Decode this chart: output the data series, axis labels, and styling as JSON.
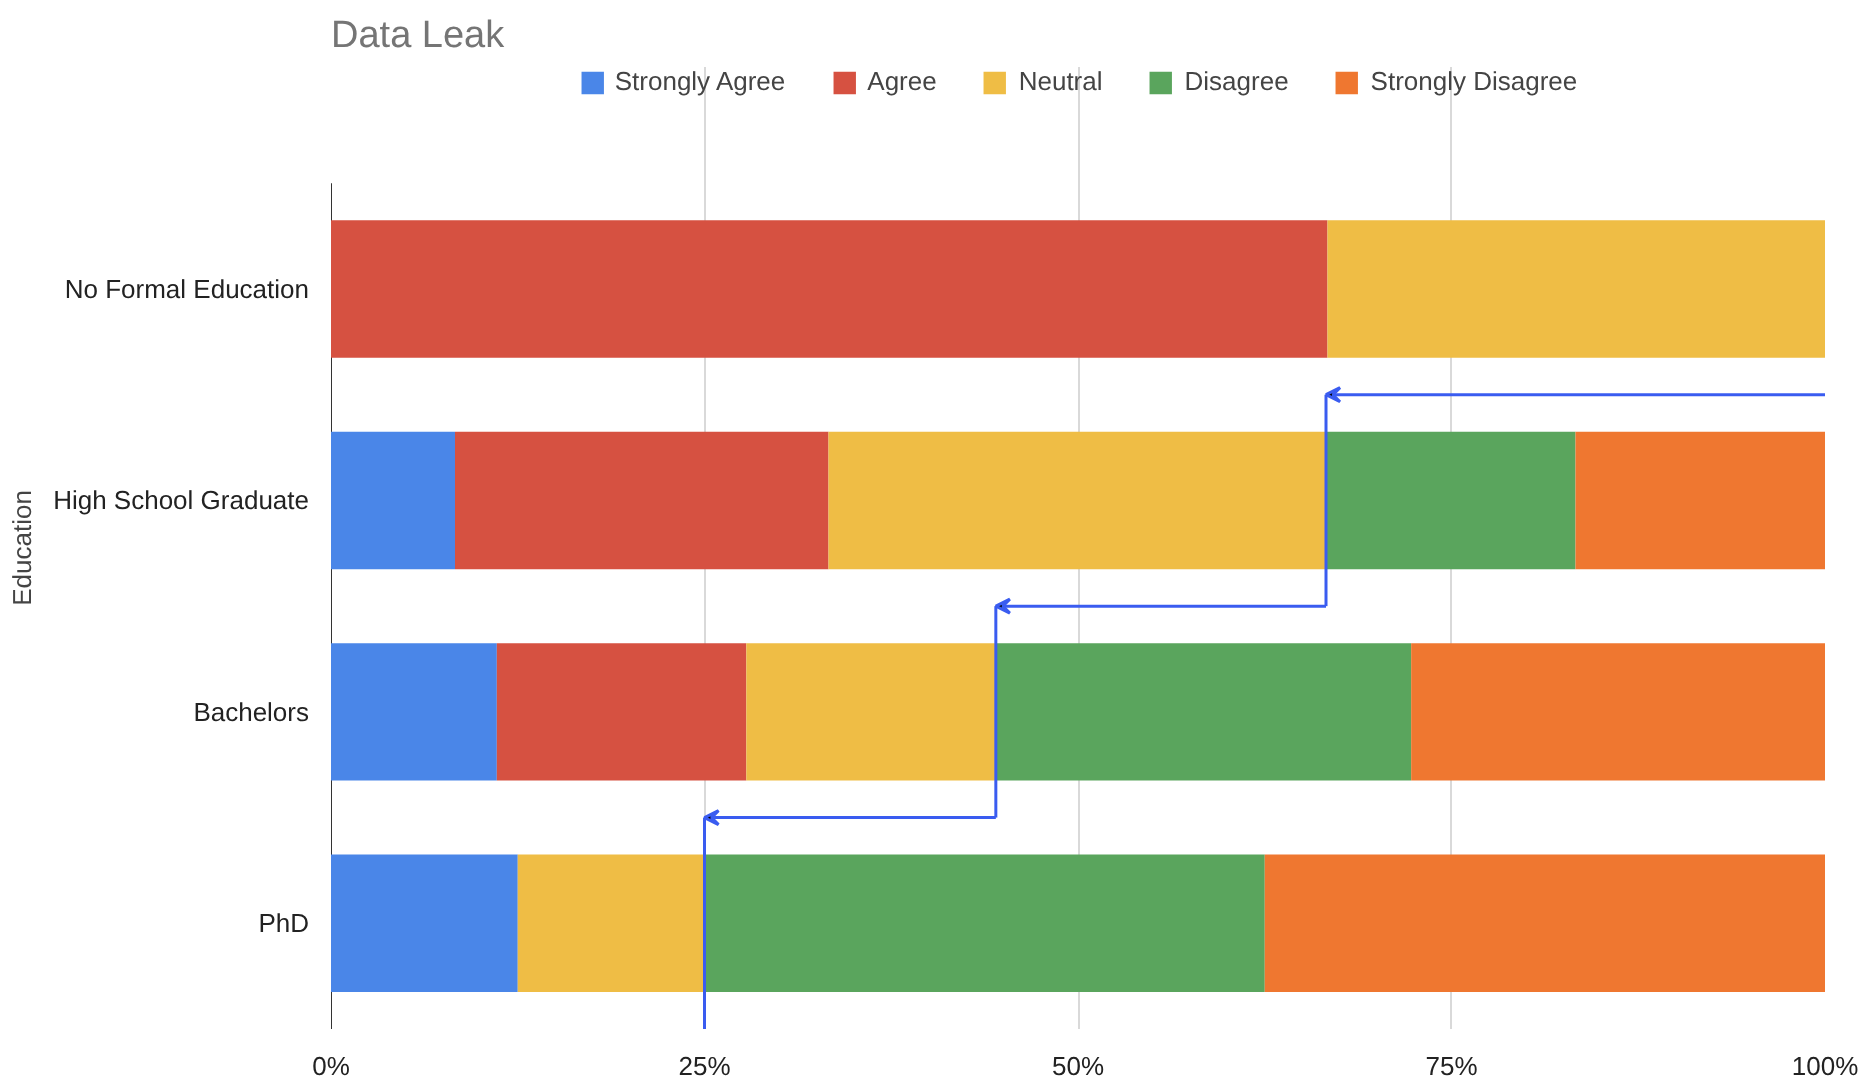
{
  "chart_data": {
    "type": "bar",
    "orientation": "horizontal",
    "stacked": true,
    "title": "Data Leak",
    "ylabel": "Education",
    "categories": [
      "No Formal Education",
      "High School Graduate",
      "Bachelors",
      "PhD"
    ],
    "series": [
      {
        "name": "Strongly Agree",
        "color": "#4a86e8",
        "values": [
          0,
          8.3,
          11.1,
          12.5
        ]
      },
      {
        "name": "Agree",
        "color": "#d65141",
        "values": [
          66.7,
          25,
          16.7,
          0
        ]
      },
      {
        "name": "Neutral",
        "color": "#efbd45",
        "values": [
          33.3,
          33.3,
          16.7,
          12.5
        ]
      },
      {
        "name": "Disagree",
        "color": "#5aa55d",
        "values": [
          0,
          16.7,
          27.8,
          37.5
        ]
      },
      {
        "name": "Strongly Disagree",
        "color": "#ef7730",
        "values": [
          0,
          16.7,
          27.8,
          37.5
        ]
      }
    ],
    "xlim": [
      0,
      100
    ],
    "xticks": [
      {
        "value": 0,
        "label": "0%"
      },
      {
        "value": 25,
        "label": "25%"
      },
      {
        "value": 50,
        "label": "50%"
      },
      {
        "value": 75,
        "label": "75%"
      },
      {
        "value": 100,
        "label": "100%"
      }
    ],
    "grid": "x",
    "legend": "top"
  }
}
